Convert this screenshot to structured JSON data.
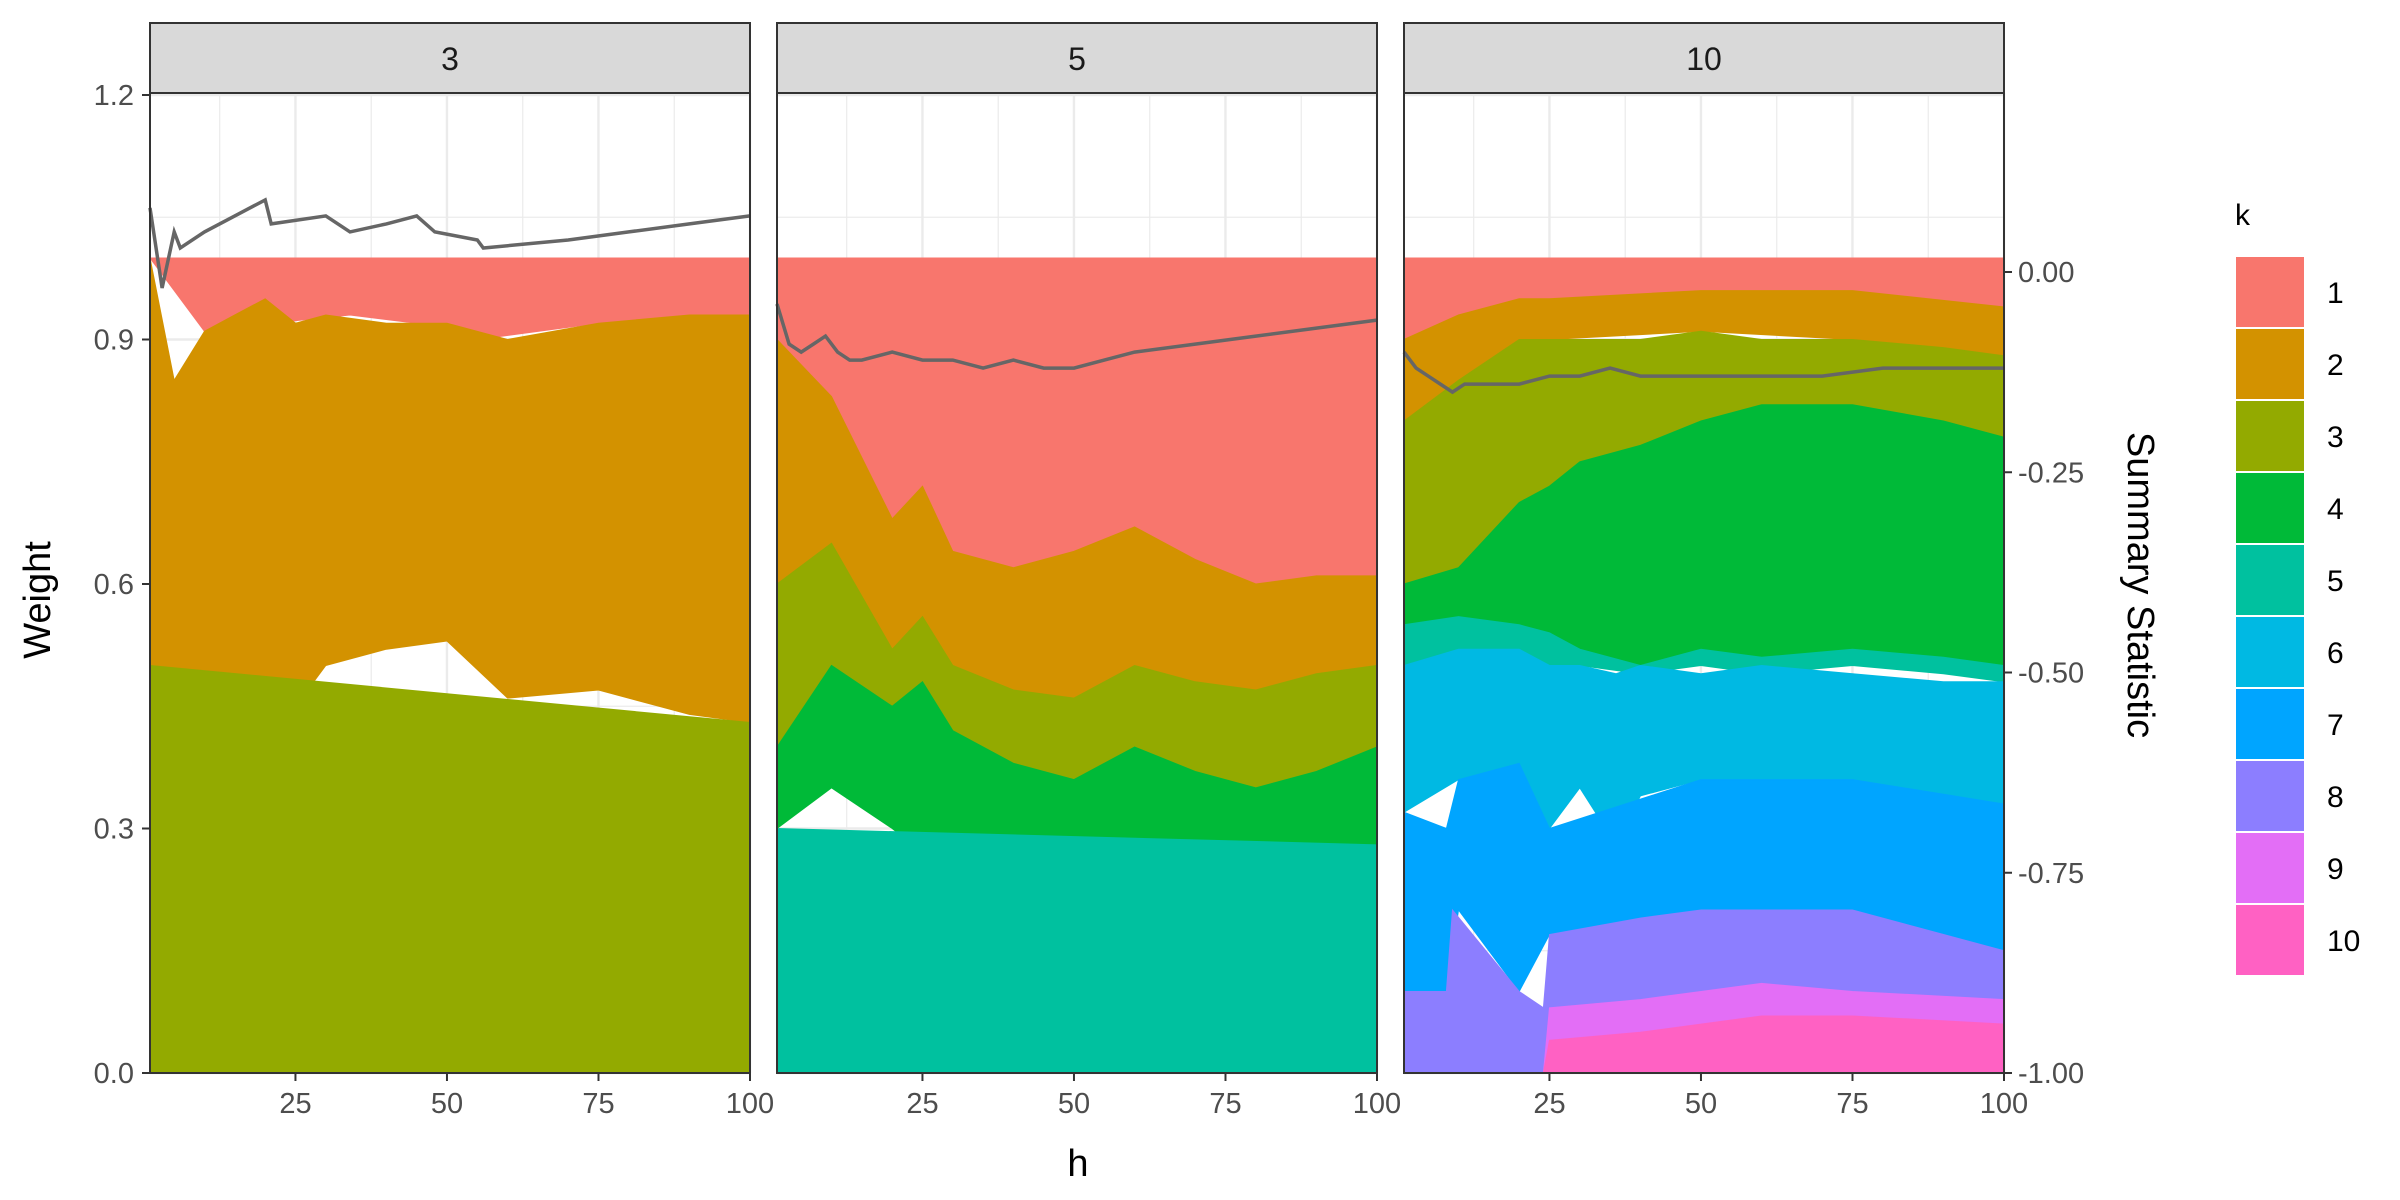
{
  "chart_data": {
    "type": "area",
    "xlabel": "h",
    "ylabel": "Weight",
    "y2label": "Summary Statistic",
    "xlim": [
      1,
      100
    ],
    "xticks": [
      "25",
      "50",
      "75",
      "100"
    ],
    "ylim": [
      0,
      1.2
    ],
    "yticks": [
      "0.0",
      "0.3",
      "0.6",
      "0.9",
      "1.2"
    ],
    "y2lim": [
      -1,
      0
    ],
    "y2ticks": [
      "0.00",
      "-0.25",
      "-0.50",
      "-0.75",
      "-1.00"
    ],
    "grid": true,
    "legend": {
      "title": "k",
      "position": "right",
      "entries": [
        {
          "label": "1",
          "color": "#F8766D"
        },
        {
          "label": "2",
          "color": "#D39200"
        },
        {
          "label": "3",
          "color": "#93AA00"
        },
        {
          "label": "4",
          "color": "#00BA38"
        },
        {
          "label": "5",
          "color": "#00C19F"
        },
        {
          "label": "6",
          "color": "#00B9E3"
        },
        {
          "label": "7",
          "color": "#00A5FF"
        },
        {
          "label": "8",
          "color": "#8C7EFF"
        },
        {
          "label": "9",
          "color": "#E36EF6"
        },
        {
          "label": "10",
          "color": "#FF61C3"
        }
      ]
    },
    "summary_color": "#666666",
    "panels": [
      {
        "strip": "3",
        "bands": [
          {
            "k": "1",
            "x": [
              1,
              10,
              20,
              21,
              34,
              45,
              55,
              75,
              100
            ],
            "lower": [
              1.0,
              0.91,
              0.95,
              0.92,
              0.93,
              0.92,
              0.9,
              0.92,
              0.93
            ],
            "upper": [
              1,
              1,
              1,
              1,
              1,
              1,
              1,
              1,
              1
            ]
          },
          {
            "k": "2",
            "x": [
              1,
              5,
              10,
              15,
              20,
              25,
              30,
              40,
              50,
              60,
              75,
              90,
              100
            ],
            "lower": [
              0.5,
              0.44,
              0.42,
              0.35,
              0.46,
              0.45,
              0.5,
              0.52,
              0.53,
              0.46,
              0.47,
              0.44,
              0.43
            ],
            "upper": [
              1.0,
              0.85,
              0.91,
              0.93,
              0.95,
              0.92,
              0.93,
              0.92,
              0.92,
              0.9,
              0.92,
              0.93,
              0.93
            ]
          },
          {
            "k": "3",
            "x": [
              1,
              100
            ],
            "lower": [
              0,
              0
            ],
            "upper": [
              0.5,
              0.43
            ]
          }
        ],
        "summary": {
          "x": [
            1,
            3,
            5,
            6,
            10,
            15,
            20,
            21,
            30,
            34,
            40,
            45,
            48,
            55,
            56,
            70,
            80,
            90,
            100
          ],
          "y": [
            0.08,
            -0.02,
            0.05,
            0.03,
            0.05,
            0.07,
            0.09,
            0.06,
            0.07,
            0.05,
            0.06,
            0.07,
            0.05,
            0.04,
            0.03,
            0.04,
            0.05,
            0.06,
            0.07
          ]
        }
      },
      {
        "strip": "5",
        "bands": [
          {
            "k": "1",
            "x": [
              1,
              10,
              20,
              25,
              30,
              40,
              50,
              60,
              70,
              80,
              90,
              100
            ],
            "lower": [
              0.9,
              0.83,
              0.68,
              0.72,
              0.64,
              0.62,
              0.64,
              0.67,
              0.63,
              0.6,
              0.61,
              0.61
            ],
            "upper": [
              1,
              1,
              1,
              1,
              1,
              1,
              1,
              1,
              1,
              1,
              1,
              1
            ]
          },
          {
            "k": "2",
            "x": [
              1,
              10,
              20,
              25,
              30,
              40,
              50,
              60,
              70,
              80,
              90,
              100
            ],
            "lower": [
              0.6,
              0.65,
              0.52,
              0.56,
              0.5,
              0.47,
              0.46,
              0.5,
              0.48,
              0.47,
              0.49,
              0.5
            ],
            "upper": [
              0.9,
              0.83,
              0.68,
              0.72,
              0.64,
              0.62,
              0.64,
              0.67,
              0.63,
              0.6,
              0.61,
              0.61
            ]
          },
          {
            "k": "3",
            "x": [
              1,
              10,
              20,
              25,
              30,
              40,
              50,
              60,
              70,
              80,
              90,
              100
            ],
            "lower": [
              0.4,
              0.5,
              0.45,
              0.48,
              0.42,
              0.38,
              0.36,
              0.4,
              0.37,
              0.35,
              0.37,
              0.4
            ],
            "upper": [
              0.6,
              0.65,
              0.52,
              0.56,
              0.5,
              0.47,
              0.46,
              0.5,
              0.48,
              0.47,
              0.49,
              0.5
            ]
          },
          {
            "k": "4",
            "x": [
              1,
              10,
              20,
              25,
              30,
              40,
              50,
              60,
              70,
              80,
              90,
              100
            ],
            "lower": [
              0.3,
              0.35,
              0.3,
              0.27,
              0.22,
              0.18,
              0.2,
              0.24,
              0.25,
              0.26,
              0.27,
              0.28
            ],
            "upper": [
              0.4,
              0.5,
              0.45,
              0.48,
              0.42,
              0.38,
              0.36,
              0.4,
              0.37,
              0.35,
              0.37,
              0.4
            ]
          },
          {
            "k": "5",
            "x": [
              1,
              100
            ],
            "lower": [
              0,
              0
            ],
            "upper": [
              0.3,
              0.28
            ]
          }
        ],
        "summary": {
          "x": [
            1,
            3,
            5,
            7,
            9,
            11,
            13,
            15,
            20,
            25,
            30,
            35,
            40,
            45,
            50,
            55,
            60,
            70,
            80,
            90,
            100
          ],
          "y": [
            -0.04,
            -0.09,
            -0.1,
            -0.09,
            -0.08,
            -0.1,
            -0.11,
            -0.11,
            -0.1,
            -0.11,
            -0.11,
            -0.12,
            -0.11,
            -0.12,
            -0.12,
            -0.11,
            -0.1,
            -0.09,
            -0.08,
            -0.07,
            -0.06
          ]
        }
      },
      {
        "strip": "10",
        "bands": [
          {
            "k": "1",
            "x": [
              1,
              10,
              20,
              25,
              50,
              75,
              100
            ],
            "lower": [
              0.9,
              0.93,
              0.95,
              0.95,
              0.96,
              0.96,
              0.94
            ],
            "upper": [
              1,
              1,
              1,
              1,
              1,
              1,
              1
            ]
          },
          {
            "k": "2",
            "x": [
              1,
              10,
              20,
              25,
              50,
              75,
              100
            ],
            "lower": [
              0.8,
              0.85,
              0.9,
              0.9,
              0.91,
              0.9,
              0.88
            ],
            "upper": [
              0.9,
              0.93,
              0.95,
              0.95,
              0.96,
              0.96,
              0.94
            ]
          },
          {
            "k": "3",
            "x": [
              1,
              10,
              20,
              25,
              30,
              40,
              50,
              60,
              75,
              90,
              100
            ],
            "lower": [
              0.6,
              0.62,
              0.7,
              0.72,
              0.75,
              0.77,
              0.8,
              0.82,
              0.82,
              0.8,
              0.78
            ],
            "upper": [
              0.8,
              0.85,
              0.9,
              0.9,
              0.9,
              0.9,
              0.91,
              0.9,
              0.9,
              0.89,
              0.88
            ]
          },
          {
            "k": "4",
            "x": [
              1,
              10,
              20,
              25,
              30,
              40,
              50,
              60,
              75,
              90,
              100
            ],
            "lower": [
              0.55,
              0.56,
              0.55,
              0.54,
              0.52,
              0.5,
              0.52,
              0.51,
              0.52,
              0.51,
              0.5
            ],
            "upper": [
              0.6,
              0.62,
              0.7,
              0.72,
              0.75,
              0.77,
              0.8,
              0.82,
              0.82,
              0.8,
              0.78
            ]
          },
          {
            "k": "5",
            "x": [
              1,
              10,
              20,
              25,
              30,
              40,
              50,
              60,
              75,
              90,
              100
            ],
            "lower": [
              0.5,
              0.52,
              0.52,
              0.5,
              0.5,
              0.49,
              0.5,
              0.49,
              0.5,
              0.49,
              0.48
            ],
            "upper": [
              0.55,
              0.56,
              0.55,
              0.54,
              0.52,
              0.5,
              0.52,
              0.51,
              0.52,
              0.51,
              0.5
            ]
          },
          {
            "k": "6",
            "x": [
              1,
              10,
              20,
              25,
              30,
              36,
              40,
              50,
              60,
              75,
              90,
              100
            ],
            "lower": [
              0.32,
              0.36,
              0.38,
              0.3,
              0.35,
              0.28,
              0.34,
              0.36,
              0.36,
              0.36,
              0.34,
              0.33
            ],
            "upper": [
              0.5,
              0.52,
              0.52,
              0.5,
              0.5,
              0.49,
              0.5,
              0.49,
              0.5,
              0.49,
              0.48,
              0.48
            ]
          },
          {
            "k": "7",
            "x": [
              1,
              8,
              10,
              20,
              25,
              50,
              75,
              100
            ],
            "lower": [
              0.1,
              0.1,
              0.2,
              0.1,
              0.17,
              0.2,
              0.2,
              0.15
            ],
            "upper": [
              0.32,
              0.3,
              0.36,
              0.38,
              0.3,
              0.36,
              0.36,
              0.33
            ]
          },
          {
            "k": "8",
            "x": [
              1,
              8,
              9,
              20,
              24,
              25,
              40,
              50,
              75,
              100
            ],
            "lower": [
              0,
              0,
              0,
              0,
              0,
              0.08,
              0.09,
              0.1,
              0.1,
              0.09
            ],
            "upper": [
              0.1,
              0.1,
              0.2,
              0.1,
              0.08,
              0.17,
              0.19,
              0.2,
              0.2,
              0.15
            ]
          },
          {
            "k": "9",
            "x": [
              24,
              25,
              40,
              50,
              60,
              75,
              100
            ],
            "lower": [
              0,
              0.04,
              0.05,
              0.06,
              0.07,
              0.07,
              0.06
            ],
            "upper": [
              0,
              0.08,
              0.09,
              0.1,
              0.11,
              0.1,
              0.09
            ]
          },
          {
            "k": "10",
            "x": [
              24,
              25,
              40,
              50,
              60,
              75,
              100
            ],
            "lower": [
              0,
              0,
              0,
              0,
              0,
              0,
              0
            ],
            "upper": [
              0,
              0.04,
              0.05,
              0.06,
              0.07,
              0.07,
              0.06
            ]
          }
        ],
        "summary": {
          "x": [
            1,
            3,
            5,
            7,
            9,
            11,
            13,
            15,
            20,
            25,
            30,
            35,
            40,
            45,
            50,
            55,
            60,
            70,
            80,
            90,
            100
          ],
          "y": [
            -0.1,
            -0.12,
            -0.13,
            -0.14,
            -0.15,
            -0.14,
            -0.14,
            -0.14,
            -0.14,
            -0.13,
            -0.13,
            -0.12,
            -0.13,
            -0.13,
            -0.13,
            -0.13,
            -0.13,
            -0.13,
            -0.12,
            -0.12,
            -0.12
          ]
        }
      }
    ]
  }
}
